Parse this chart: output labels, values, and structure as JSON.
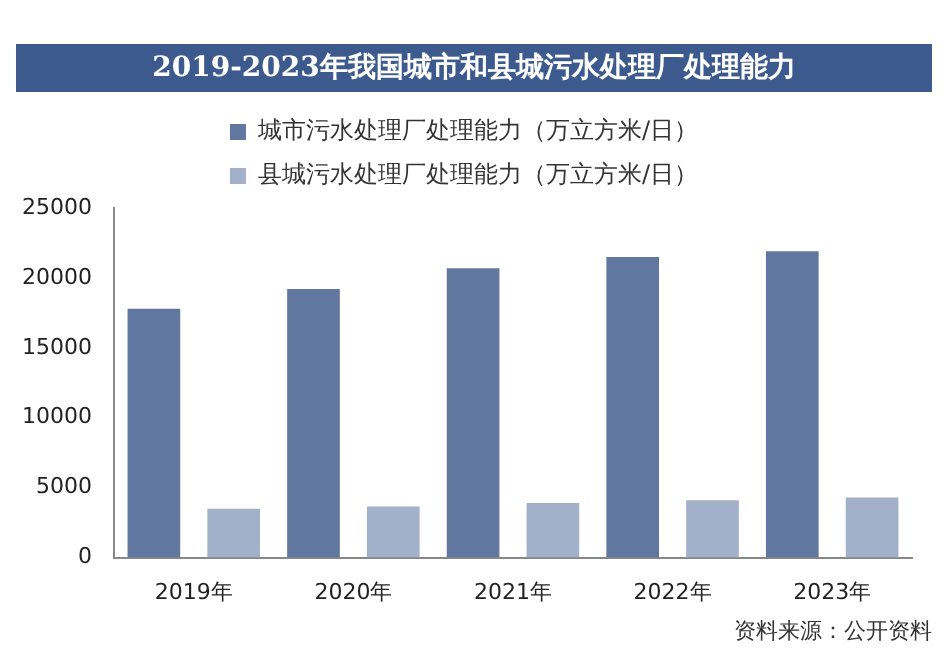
{
  "chart_data": {
    "type": "bar",
    "title": "2019-2023年我国城市和县城污水处理厂处理能力",
    "categories": [
      "2019年",
      "2020年",
      "2021年",
      "2022年",
      "2023年"
    ],
    "series": [
      {
        "name": "城市污水处理厂处理能力（万立方米/日）",
        "color": "#61779f",
        "values": [
          17800,
          19200,
          20700,
          21500,
          21900
        ]
      },
      {
        "name": "县城污水处理厂处理能力（万立方米/日）",
        "color": "#a3b0ca",
        "values": [
          3500,
          3650,
          3900,
          4100,
          4300
        ]
      }
    ],
    "ylim": [
      0,
      25000
    ],
    "yticks": [
      0,
      5000,
      10000,
      15000,
      20000,
      25000
    ],
    "grid": false,
    "legend": "top",
    "annotations": [
      "资料来源：公开资料"
    ]
  }
}
